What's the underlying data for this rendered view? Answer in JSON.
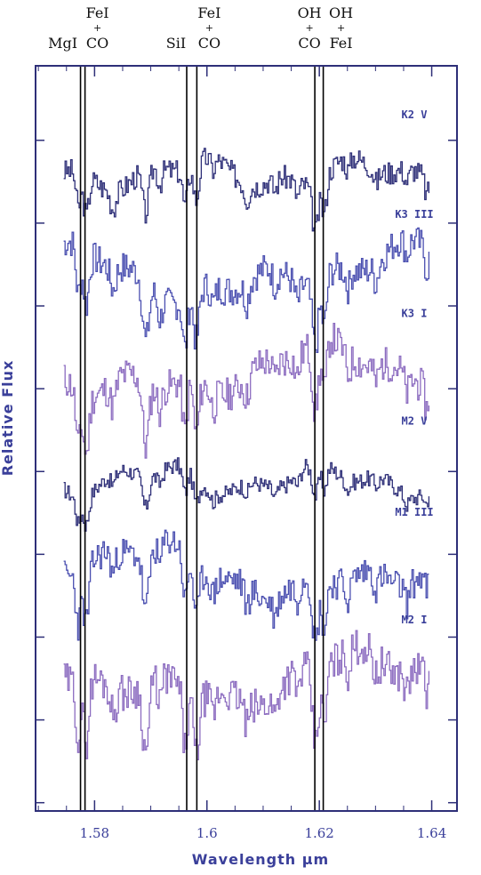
{
  "chart_data": {
    "type": "line",
    "xlabel": "Wavelength μm",
    "ylabel": "Relative Flux",
    "xlim": [
      1.5695,
      1.6445
    ],
    "x_ticks": [
      1.58,
      1.6,
      1.62,
      1.64
    ],
    "x_tick_labels": [
      "1.58",
      "1.6",
      "1.62",
      "1.64"
    ],
    "y_ticks_unlabeled": [
      0,
      1,
      2,
      3,
      4,
      5,
      6,
      7,
      8
    ],
    "grid": false,
    "x_range_spectra": [
      1.5745,
      1.6395
    ],
    "series": [
      {
        "name": "K2 V",
        "color": "#2e2f78",
        "offset": 7.7,
        "depth": 1.0,
        "seed": 3
      },
      {
        "name": "K3 III",
        "color": "#4a4fb0",
        "offset": 6.5,
        "depth": 1.35,
        "seed": 7
      },
      {
        "name": "K3 I",
        "color": "#8c6cc0",
        "offset": 5.3,
        "depth": 1.45,
        "seed": 11
      },
      {
        "name": "M2 V",
        "color": "#2e2f78",
        "offset": 4.0,
        "depth": 0.7,
        "seed": 17
      },
      {
        "name": "M1 III",
        "color": "#4a4fb0",
        "offset": 2.9,
        "depth": 1.35,
        "seed": 23
      },
      {
        "name": "M2 I",
        "color": "#8c6cc0",
        "offset": 1.6,
        "depth": 1.55,
        "seed": 29
      }
    ],
    "line_identifications": [
      {
        "x": 1.5775,
        "text": [
          "MgI"
        ]
      },
      {
        "x": 1.5783,
        "text": [
          "FeI",
          "+",
          "CO"
        ]
      },
      {
        "x": 1.5964,
        "text": [
          "SiI"
        ]
      },
      {
        "x": 1.5982,
        "text": [
          "FeI",
          "+",
          "CO"
        ]
      },
      {
        "x": 1.6192,
        "text": [
          "OH",
          "+",
          "CO"
        ]
      },
      {
        "x": 1.6207,
        "text": [
          "OH",
          "+",
          "FeI"
        ]
      }
    ],
    "colors": {
      "axis": "#2e2f78",
      "markers": "#000000"
    }
  }
}
